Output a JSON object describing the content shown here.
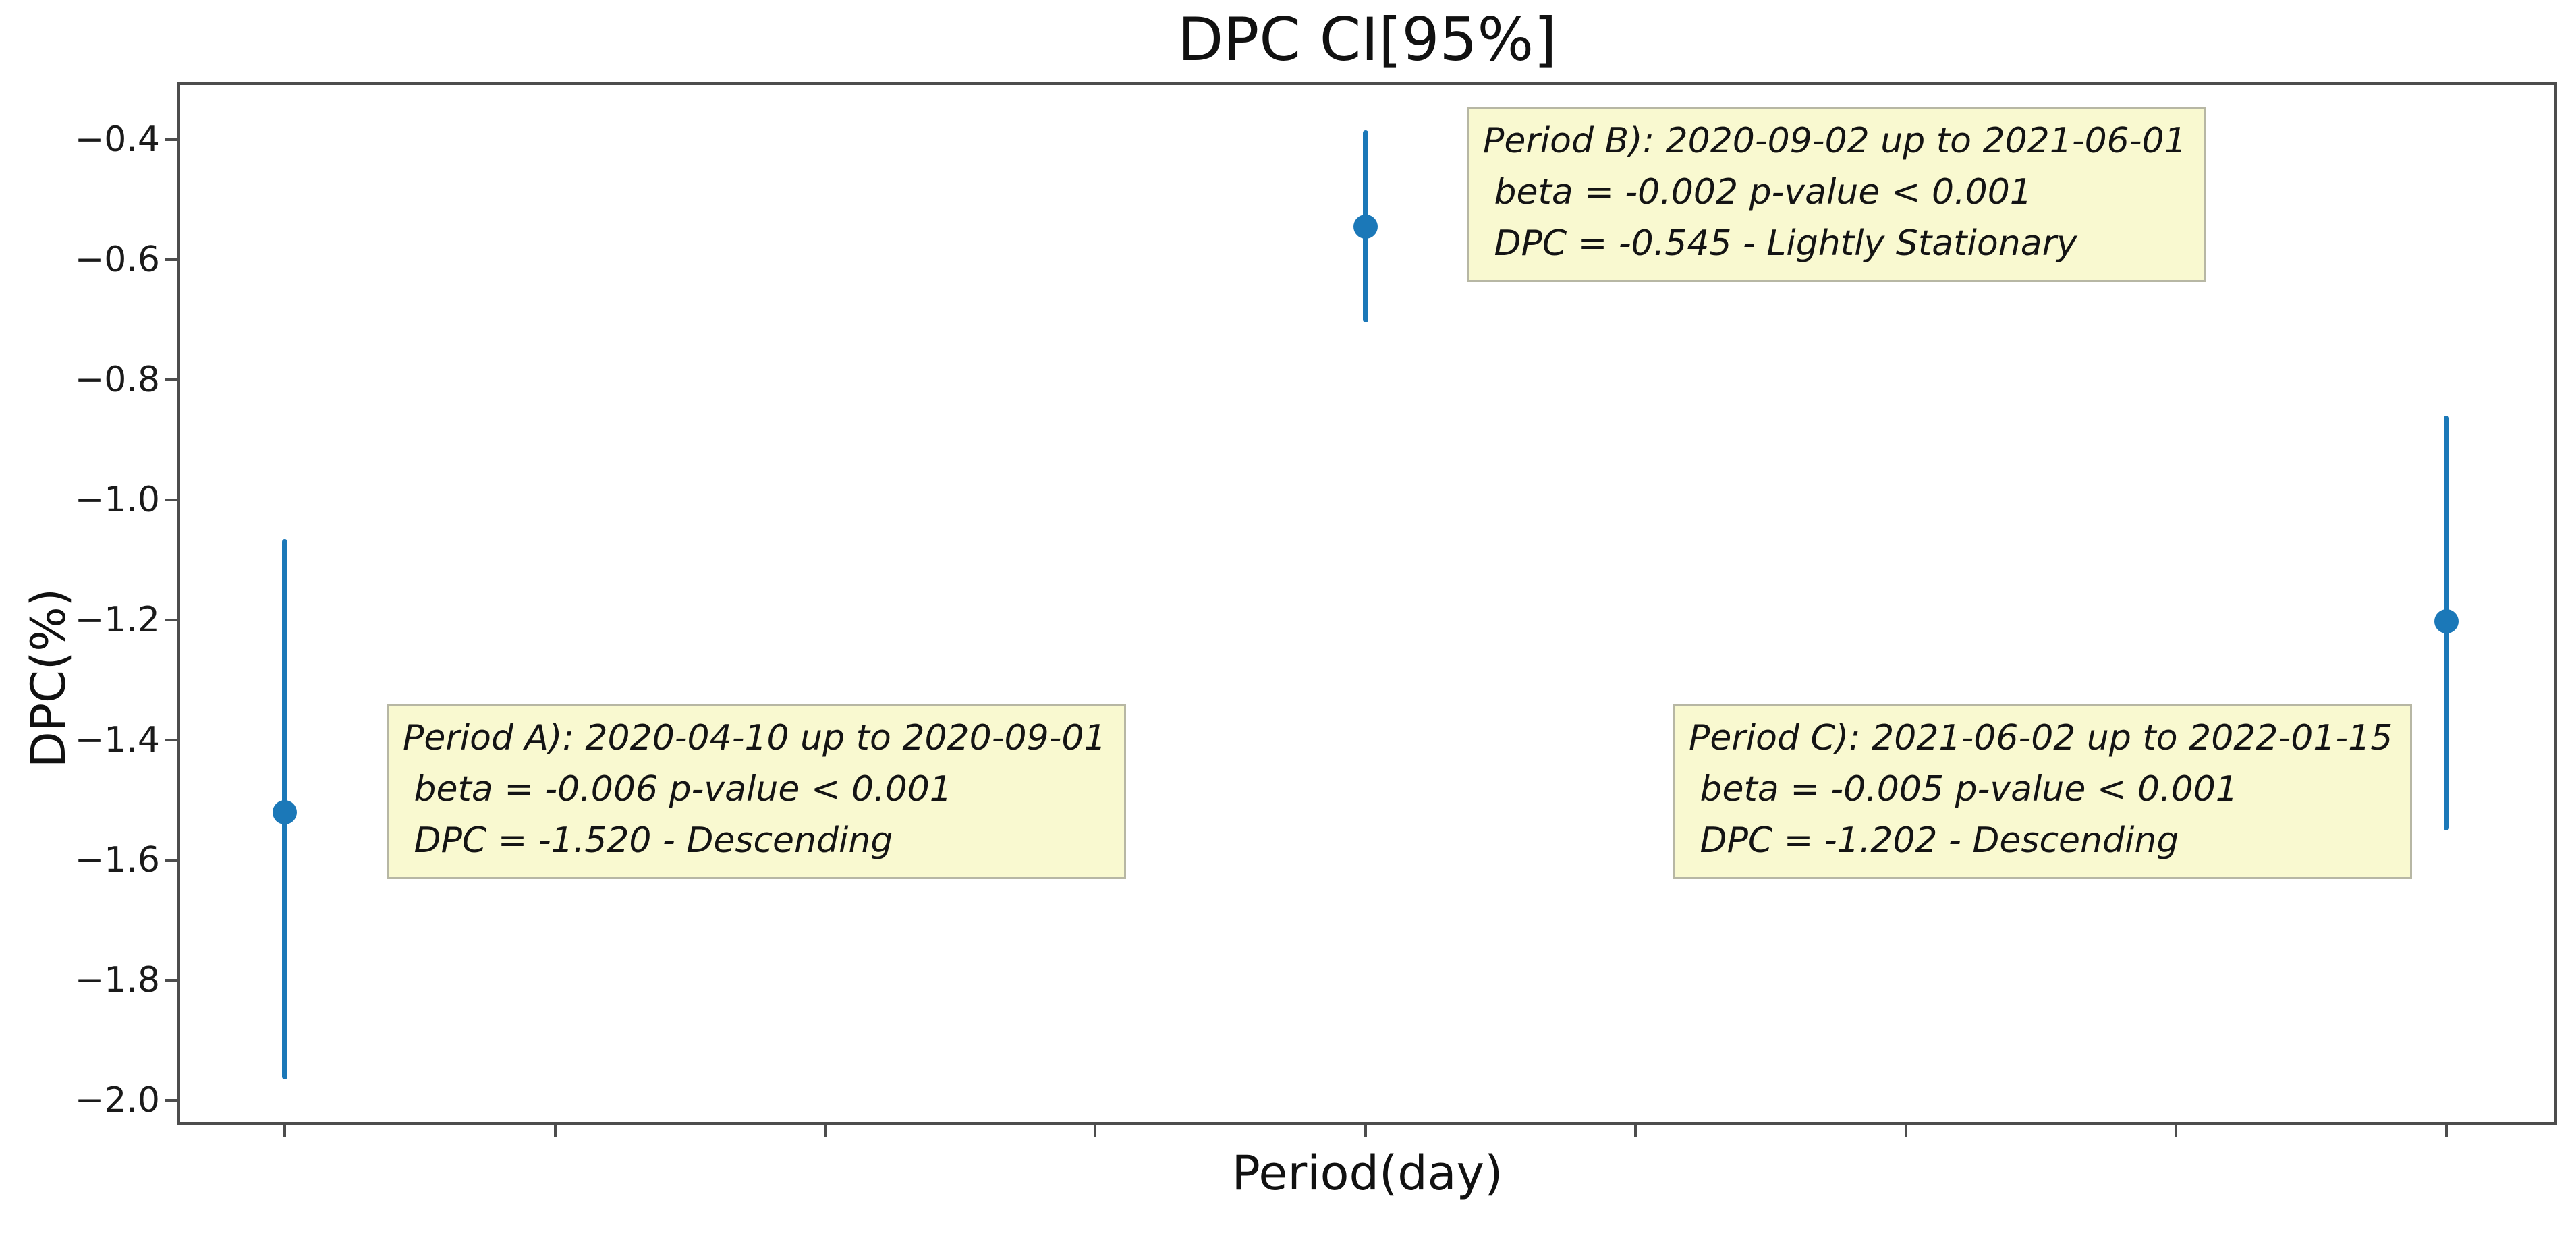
{
  "figure": {
    "background": "#ffffff"
  },
  "chart_data": {
    "type": "scatter",
    "title": "DPC CI[95%]",
    "xlabel": "Period(day)",
    "ylabel": "DPC(%)",
    "ylim": [
      -2.04,
      -0.305
    ],
    "yticks": [
      -0.4,
      -0.6,
      -0.8,
      -1.0,
      -1.2,
      -1.4,
      -1.6,
      -1.8,
      -2.0
    ],
    "x_ticks": {
      "count": 9,
      "labels_visible": false
    },
    "grid": false,
    "legend": "none",
    "colors": {
      "marker": "#1b78b8",
      "error_bar": "#1b78b8",
      "annotation_background": "#f9f9d0",
      "annotation_border": "#b7b7a4",
      "spine": "#4d4d4d",
      "text": "#1a1a1a"
    },
    "periods": [
      {
        "period": "A",
        "date_range": "2020-04-10 up to 2020-09-01",
        "beta": "-0.006",
        "p_value": "< 0.001",
        "dpc": "-1.520",
        "classification": "Descending",
        "point": {
          "x_tick_index": 0,
          "y": -1.52,
          "ci_high": -1.065,
          "ci_low": -1.965
        }
      },
      {
        "period": "B",
        "date_range": "2020-09-02 up to 2021-06-01",
        "beta": "-0.002",
        "p_value": "< 0.001",
        "dpc": "-0.545",
        "classification": "Lightly Stationary",
        "point": {
          "x_tick_index": 4,
          "y": -0.545,
          "ci_high": -0.385,
          "ci_low": -0.705
        }
      },
      {
        "period": "C",
        "date_range": "2021-06-02 up to 2022-01-15",
        "beta": "-0.005",
        "p_value": "< 0.001",
        "dpc": "-1.202",
        "classification": "Descending",
        "point": {
          "x_tick_index": 8,
          "y": -1.202,
          "ci_high": -0.86,
          "ci_low": -1.55
        }
      }
    ]
  }
}
